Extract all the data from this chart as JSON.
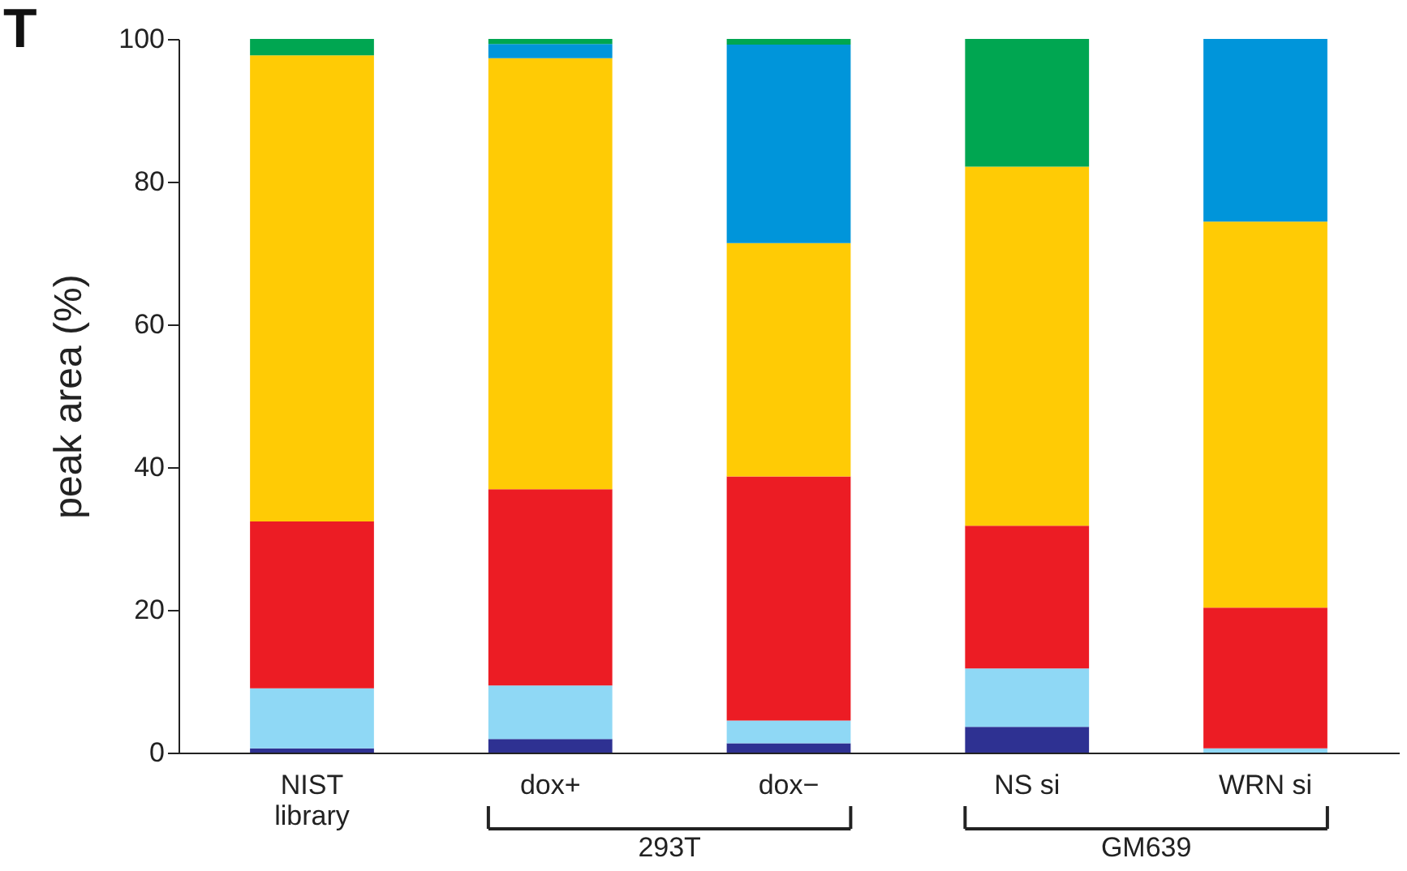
{
  "chart_data": {
    "type": "bar",
    "stacked": true,
    "ylabel": "peak area (%)",
    "categories": [
      "NIST\nlibrary",
      "dox+",
      "dox−",
      "NS si",
      "WRN si"
    ],
    "series": [
      {
        "color": "#2e3192",
        "values": [
          0.6,
          1.9,
          1.3,
          3.6,
          0
        ]
      },
      {
        "color": "#8fd8f5",
        "values": [
          8.4,
          7.5,
          3.2,
          8.2,
          0.6
        ]
      },
      {
        "color": "#ec1c24",
        "values": [
          23.4,
          27.5,
          34.2,
          20.0,
          19.7
        ]
      },
      {
        "color": "#ffcb05",
        "values": [
          65.3,
          60.4,
          32.7,
          50.3,
          54.1
        ]
      },
      {
        "color": "#0095da",
        "values": [
          0,
          2.0,
          27.8,
          0,
          25.6
        ]
      },
      {
        "color": "#00a651",
        "values": [
          2.3,
          0.7,
          0.8,
          17.9,
          0
        ]
      }
    ],
    "ylim": [
      0,
      100
    ],
    "yticks": [
      0,
      20,
      40,
      60,
      80,
      100
    ],
    "grid": false,
    "annotations": [
      "T",
      "293T",
      "GM639"
    ]
  }
}
